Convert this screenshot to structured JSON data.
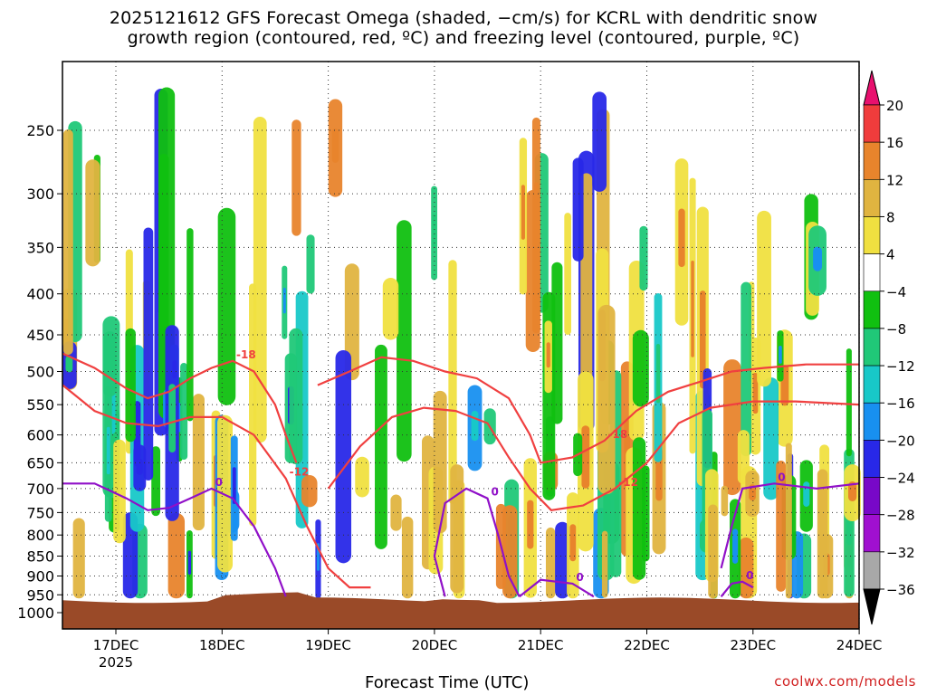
{
  "title_line1": "2025121612 GFS Forecast Omega (shaded, −cm/s) for KCRL with dendritic snow",
  "title_line2": "growth region (contoured, red, ºC) and freezing level (contoured, purple, ºC)",
  "credit": "coolwx.com/models",
  "chart_data": {
    "type": "heatmap",
    "title": "2025121612 GFS Forecast Omega (shaded, −cm/s) for KCRL with dendritic snow growth region (contoured, red, ºC) and freezing level (contoured, purple, ºC)",
    "xlabel": "Forecast Time (UTC)",
    "ylabel": "",
    "x_ticks": [
      "17DEC",
      "18DEC",
      "19DEC",
      "20DEC",
      "21DEC",
      "22DEC",
      "23DEC",
      "24DEC"
    ],
    "x_year_label": "2025",
    "y_ticks": [
      250,
      300,
      350,
      400,
      450,
      500,
      550,
      600,
      650,
      700,
      750,
      800,
      850,
      900,
      950,
      1000
    ],
    "y_scale": "log-pressure (inverted)",
    "grid": true,
    "colorbar": {
      "levels": [
        20,
        16,
        12,
        8,
        4,
        -4,
        -8,
        -12,
        -16,
        -20,
        -24,
        -28,
        -32,
        -36
      ],
      "colors": [
        "#e8106e",
        "#f03c3c",
        "#e8842c",
        "#e0b440",
        "#f0e040",
        "#ffffff",
        "#10c010",
        "#20c878",
        "#18c8c8",
        "#1890f0",
        "#2828e8",
        "#7808c8",
        "#a010d0",
        "#a8a8a8",
        "#000000"
      ]
    },
    "red_contours": [
      {
        "label": "-18",
        "points": [
          [
            16.5,
            475
          ],
          [
            16.8,
            495
          ],
          [
            17.1,
            525
          ],
          [
            17.3,
            540
          ],
          [
            17.5,
            530
          ],
          [
            17.7,
            510
          ],
          [
            17.9,
            495
          ],
          [
            18.1,
            485
          ],
          [
            18.3,
            500
          ],
          [
            18.5,
            550
          ],
          [
            18.6,
            600
          ],
          [
            18.7,
            650
          ]
        ]
      },
      {
        "label": "-12",
        "points": [
          [
            16.5,
            520
          ],
          [
            16.8,
            560
          ],
          [
            17.1,
            580
          ],
          [
            17.4,
            585
          ],
          [
            17.7,
            570
          ],
          [
            18.0,
            570
          ],
          [
            18.3,
            600
          ],
          [
            18.6,
            680
          ],
          [
            18.8,
            780
          ],
          [
            19.0,
            880
          ],
          [
            19.2,
            930
          ],
          [
            19.4,
            930
          ]
        ]
      },
      {
        "label": "-18",
        "points": [
          [
            18.9,
            520
          ],
          [
            19.2,
            500
          ],
          [
            19.5,
            480
          ],
          [
            19.8,
            485
          ],
          [
            20.1,
            500
          ],
          [
            20.4,
            510
          ],
          [
            20.7,
            540
          ],
          [
            20.9,
            600
          ],
          [
            21.0,
            650
          ],
          [
            21.3,
            640
          ],
          [
            21.6,
            610
          ],
          [
            21.9,
            560
          ],
          [
            22.2,
            530
          ],
          [
            22.5,
            515
          ],
          [
            22.8,
            500
          ],
          [
            23.1,
            495
          ],
          [
            23.5,
            490
          ],
          [
            24.0,
            490
          ]
        ]
      },
      {
        "label": "-12",
        "points": [
          [
            19.0,
            700
          ],
          [
            19.3,
            620
          ],
          [
            19.6,
            570
          ],
          [
            19.9,
            555
          ],
          [
            20.2,
            560
          ],
          [
            20.5,
            580
          ],
          [
            20.7,
            640
          ],
          [
            20.9,
            700
          ],
          [
            21.1,
            745
          ],
          [
            21.4,
            735
          ],
          [
            21.7,
            700
          ],
          [
            22.0,
            650
          ],
          [
            22.3,
            580
          ],
          [
            22.6,
            555
          ],
          [
            23.0,
            545
          ],
          [
            23.4,
            545
          ],
          [
            24.0,
            550
          ]
        ]
      }
    ],
    "purple_contours": [
      {
        "label": "0",
        "points": [
          [
            16.5,
            690
          ],
          [
            16.8,
            690
          ],
          [
            17.1,
            720
          ],
          [
            17.3,
            745
          ],
          [
            17.5,
            740
          ],
          [
            17.7,
            720
          ],
          [
            17.9,
            700
          ],
          [
            18.1,
            720
          ],
          [
            18.3,
            780
          ],
          [
            18.5,
            880
          ],
          [
            18.6,
            955
          ]
        ]
      },
      {
        "label": "0",
        "points": [
          [
            20.1,
            955
          ],
          [
            20.0,
            850
          ],
          [
            20.1,
            730
          ],
          [
            20.3,
            700
          ],
          [
            20.5,
            720
          ],
          [
            20.6,
            800
          ],
          [
            20.7,
            900
          ],
          [
            20.8,
            955
          ]
        ]
      },
      {
        "label": "0",
        "points": [
          [
            20.8,
            955
          ],
          [
            21.0,
            910
          ],
          [
            21.3,
            920
          ],
          [
            21.5,
            955
          ]
        ]
      },
      {
        "label": "0",
        "points": [
          [
            22.7,
            955
          ],
          [
            22.8,
            920
          ],
          [
            22.9,
            915
          ],
          [
            23.0,
            930
          ]
        ]
      },
      {
        "label": "0",
        "points": [
          [
            22.7,
            880
          ],
          [
            22.8,
            780
          ],
          [
            22.9,
            700
          ],
          [
            23.2,
            690
          ],
          [
            23.6,
            700
          ],
          [
            24.0,
            690
          ]
        ]
      }
    ],
    "terrain_top_hpa": 960
  }
}
